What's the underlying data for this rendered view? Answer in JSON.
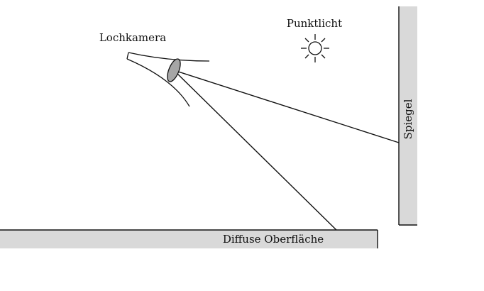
{
  "labels": {
    "camera": "Lochkamera",
    "light": "Punktlicht",
    "mirror": "Spiegel",
    "surface": "Diffuse Oberfläche"
  },
  "colors": {
    "line": "#111111",
    "panel_fill": "#d9d9d9",
    "lens_fill": "#a6a6a6",
    "background": "#ffffff"
  },
  "icons": {
    "light": "sun-icon",
    "camera": "pinhole-camera-icon"
  }
}
